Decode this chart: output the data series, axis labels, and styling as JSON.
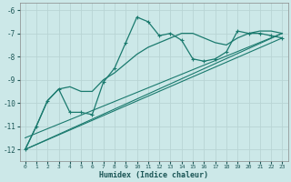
{
  "xlabel": "Humidex (Indice chaleur)",
  "bg_color": "#cce8e8",
  "line_color": "#1a7a6e",
  "grid_color": "#b8d4d4",
  "xlim": [
    -0.5,
    23.5
  ],
  "ylim": [
    -12.5,
    -5.7
  ],
  "yticks": [
    -12,
    -11,
    -10,
    -9,
    -8,
    -7,
    -6
  ],
  "xticks": [
    0,
    1,
    2,
    3,
    4,
    5,
    6,
    7,
    8,
    9,
    10,
    11,
    12,
    13,
    14,
    15,
    16,
    17,
    18,
    19,
    20,
    21,
    22,
    23
  ],
  "line1_x": [
    0,
    1,
    2,
    3,
    4,
    5,
    6,
    7,
    8,
    9,
    10,
    11,
    12,
    13,
    14,
    15,
    16,
    17,
    18,
    19,
    20,
    21,
    22,
    23
  ],
  "line1_y": [
    -12.0,
    -11.0,
    -9.9,
    -9.4,
    -10.4,
    -10.4,
    -10.5,
    -9.1,
    -8.5,
    -7.4,
    -6.3,
    -6.5,
    -7.1,
    -7.0,
    -7.3,
    -8.1,
    -8.2,
    -8.1,
    -7.8,
    -6.9,
    -7.0,
    -7.0,
    -7.1,
    -7.2
  ],
  "line2_x": [
    0,
    1,
    2,
    3,
    4,
    5,
    6,
    7,
    8,
    9,
    10,
    11,
    12,
    13,
    14,
    15,
    16,
    17,
    18,
    19,
    20,
    21,
    22,
    23
  ],
  "line2_y": [
    -12.0,
    -11.0,
    -9.9,
    -9.4,
    -9.3,
    -9.5,
    -9.5,
    -9.0,
    -8.7,
    -8.3,
    -7.9,
    -7.6,
    -7.4,
    -7.2,
    -7.0,
    -7.0,
    -7.2,
    -7.4,
    -7.5,
    -7.2,
    -7.0,
    -6.9,
    -6.9,
    -7.0
  ],
  "line3_x": [
    0,
    23
  ],
  "line3_y": [
    -12.0,
    -7.0
  ],
  "line4_x": [
    0,
    23
  ],
  "line4_y": [
    -11.5,
    -7.0
  ],
  "line5_x": [
    0,
    23
  ],
  "line5_y": [
    -12.0,
    -7.2
  ]
}
